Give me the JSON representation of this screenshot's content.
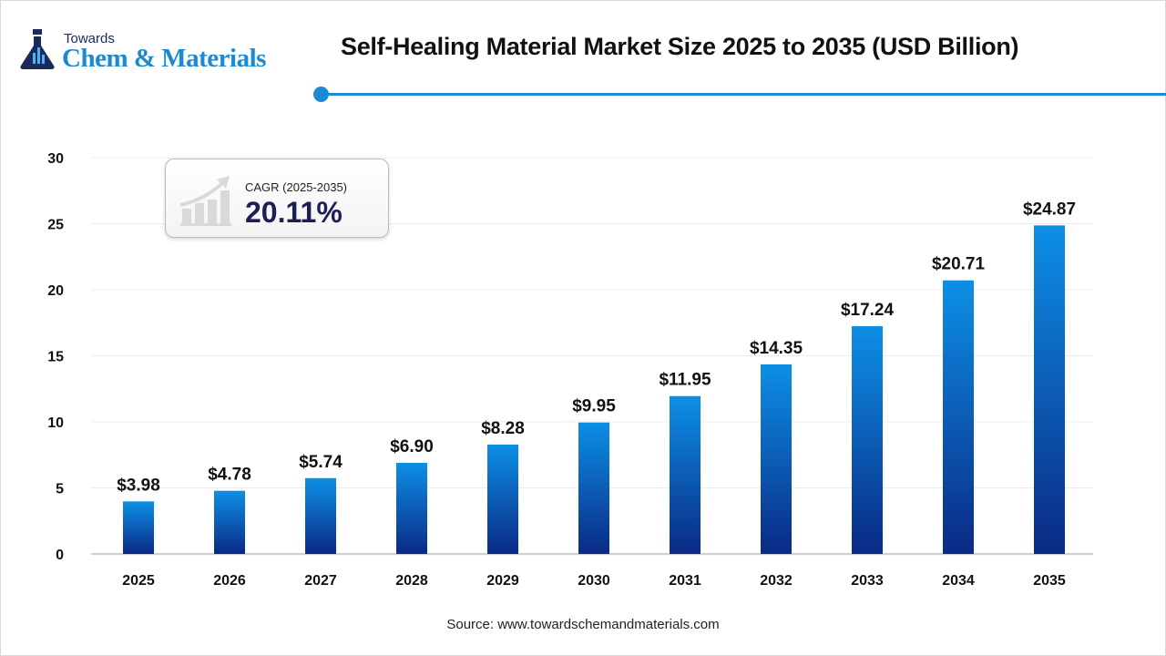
{
  "header": {
    "logo": {
      "line1": "Towards",
      "line2": "Chem & Materials"
    },
    "title": "Self-Healing Material Market Size 2025 to 2035 (USD Billion)"
  },
  "cagr": {
    "label": "CAGR (2025-2035)",
    "value": "20.11%",
    "icon": "growth-chart-icon"
  },
  "source": "Source: www.towardschemandmaterials.com",
  "colors": {
    "accent": "#1a8ad4",
    "bar_top": "#0d8fe6",
    "bar_bottom": "#0a2a85"
  },
  "chart_data": {
    "type": "bar",
    "title": "Self-Healing Material Market Size 2025 to 2035 (USD Billion)",
    "categories": [
      "2025",
      "2026",
      "2027",
      "2028",
      "2029",
      "2030",
      "2031",
      "2032",
      "2033",
      "2034",
      "2035"
    ],
    "values": [
      3.98,
      4.78,
      5.74,
      6.9,
      8.28,
      9.95,
      11.95,
      14.35,
      17.24,
      20.71,
      24.87
    ],
    "data_labels": [
      "$3.98",
      "$4.78",
      "$5.74",
      "$6.90",
      "$8.28",
      "$9.95",
      "$11.95",
      "$14.35",
      "$17.24",
      "$20.71",
      "$24.87"
    ],
    "yticks": [
      0,
      5,
      10,
      15,
      20,
      25,
      30
    ],
    "ylim": [
      0,
      30
    ],
    "xlabel": "",
    "ylabel": "",
    "grid": true
  }
}
